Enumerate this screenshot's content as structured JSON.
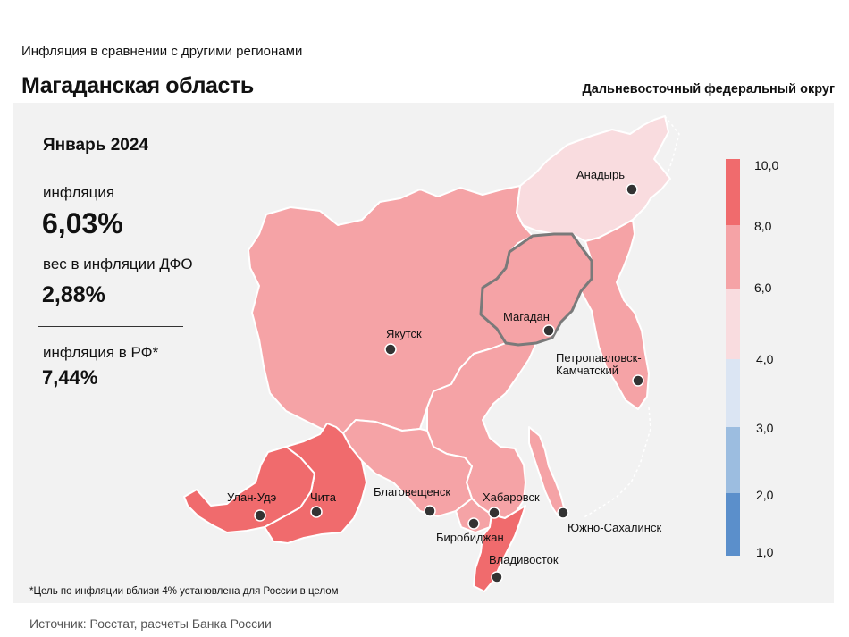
{
  "header": {
    "subtitle": "Инфляция в сравнении с другими регионами",
    "title": "Магаданская область",
    "district": "Дальневосточный федеральный округ"
  },
  "stats": {
    "period": "Январь 2024",
    "inflation_label": "инфляция",
    "inflation_value": "6,03%",
    "weight_label": "вес в инфляции ДФО",
    "weight_value": "2,88%",
    "rf_label": "инфляция в РФ*",
    "rf_value": "7,44%"
  },
  "footnote": "*Цель по инфляции вблизи 4% установлена для России в целом",
  "source": "Источник: Росстат, расчеты Банка России",
  "legend": {
    "labels": [
      "10,0",
      "8,0",
      "6,0",
      "4,0",
      "3,0",
      "2,0",
      "1,0"
    ],
    "bands": [
      {
        "from": 8.0,
        "to": 10.0,
        "color": "#f06b6d"
      },
      {
        "from": 6.0,
        "to": 8.0,
        "color": "#f5a3a6"
      },
      {
        "from": 4.0,
        "to": 6.0,
        "color": "#f9dcdf"
      },
      {
        "from": 3.0,
        "to": 4.0,
        "color": "#dbe5f3"
      },
      {
        "from": 2.0,
        "to": 3.0,
        "color": "#9cbde0"
      },
      {
        "from": 1.0,
        "to": 2.0,
        "color": "#5b8fcb"
      }
    ]
  },
  "regions": {
    "chukotka": "#f9dcdf",
    "magadan": "#f5a3a6",
    "yakutia": "#f5a3a6",
    "kamchatka": "#f5a3a6",
    "khabarovsk": "#f5a3a6",
    "amur": "#f5a3a6",
    "jewish": "#f5a3a6",
    "primorye": "#f06b6d",
    "buryatia": "#f06b6d",
    "zabaykalsky": "#f06b6d",
    "sakhalin": "#f5a3a6"
  },
  "cities": {
    "anadyr": "Анадырь",
    "yakutsk": "Якутск",
    "magadan": "Магадан",
    "petropavlovsk_1": "Петропавловск-",
    "petropavlovsk_2": "Камчатский",
    "ulan_ude": "Улан-Удэ",
    "chita": "Чита",
    "blagoveshchensk": "Благовещенск",
    "khabarovsk": "Хабаровск",
    "birobidzhan": "Биробиджан",
    "vladivostok": "Владивосток",
    "yuzhno": "Южно-Сахалинск"
  }
}
